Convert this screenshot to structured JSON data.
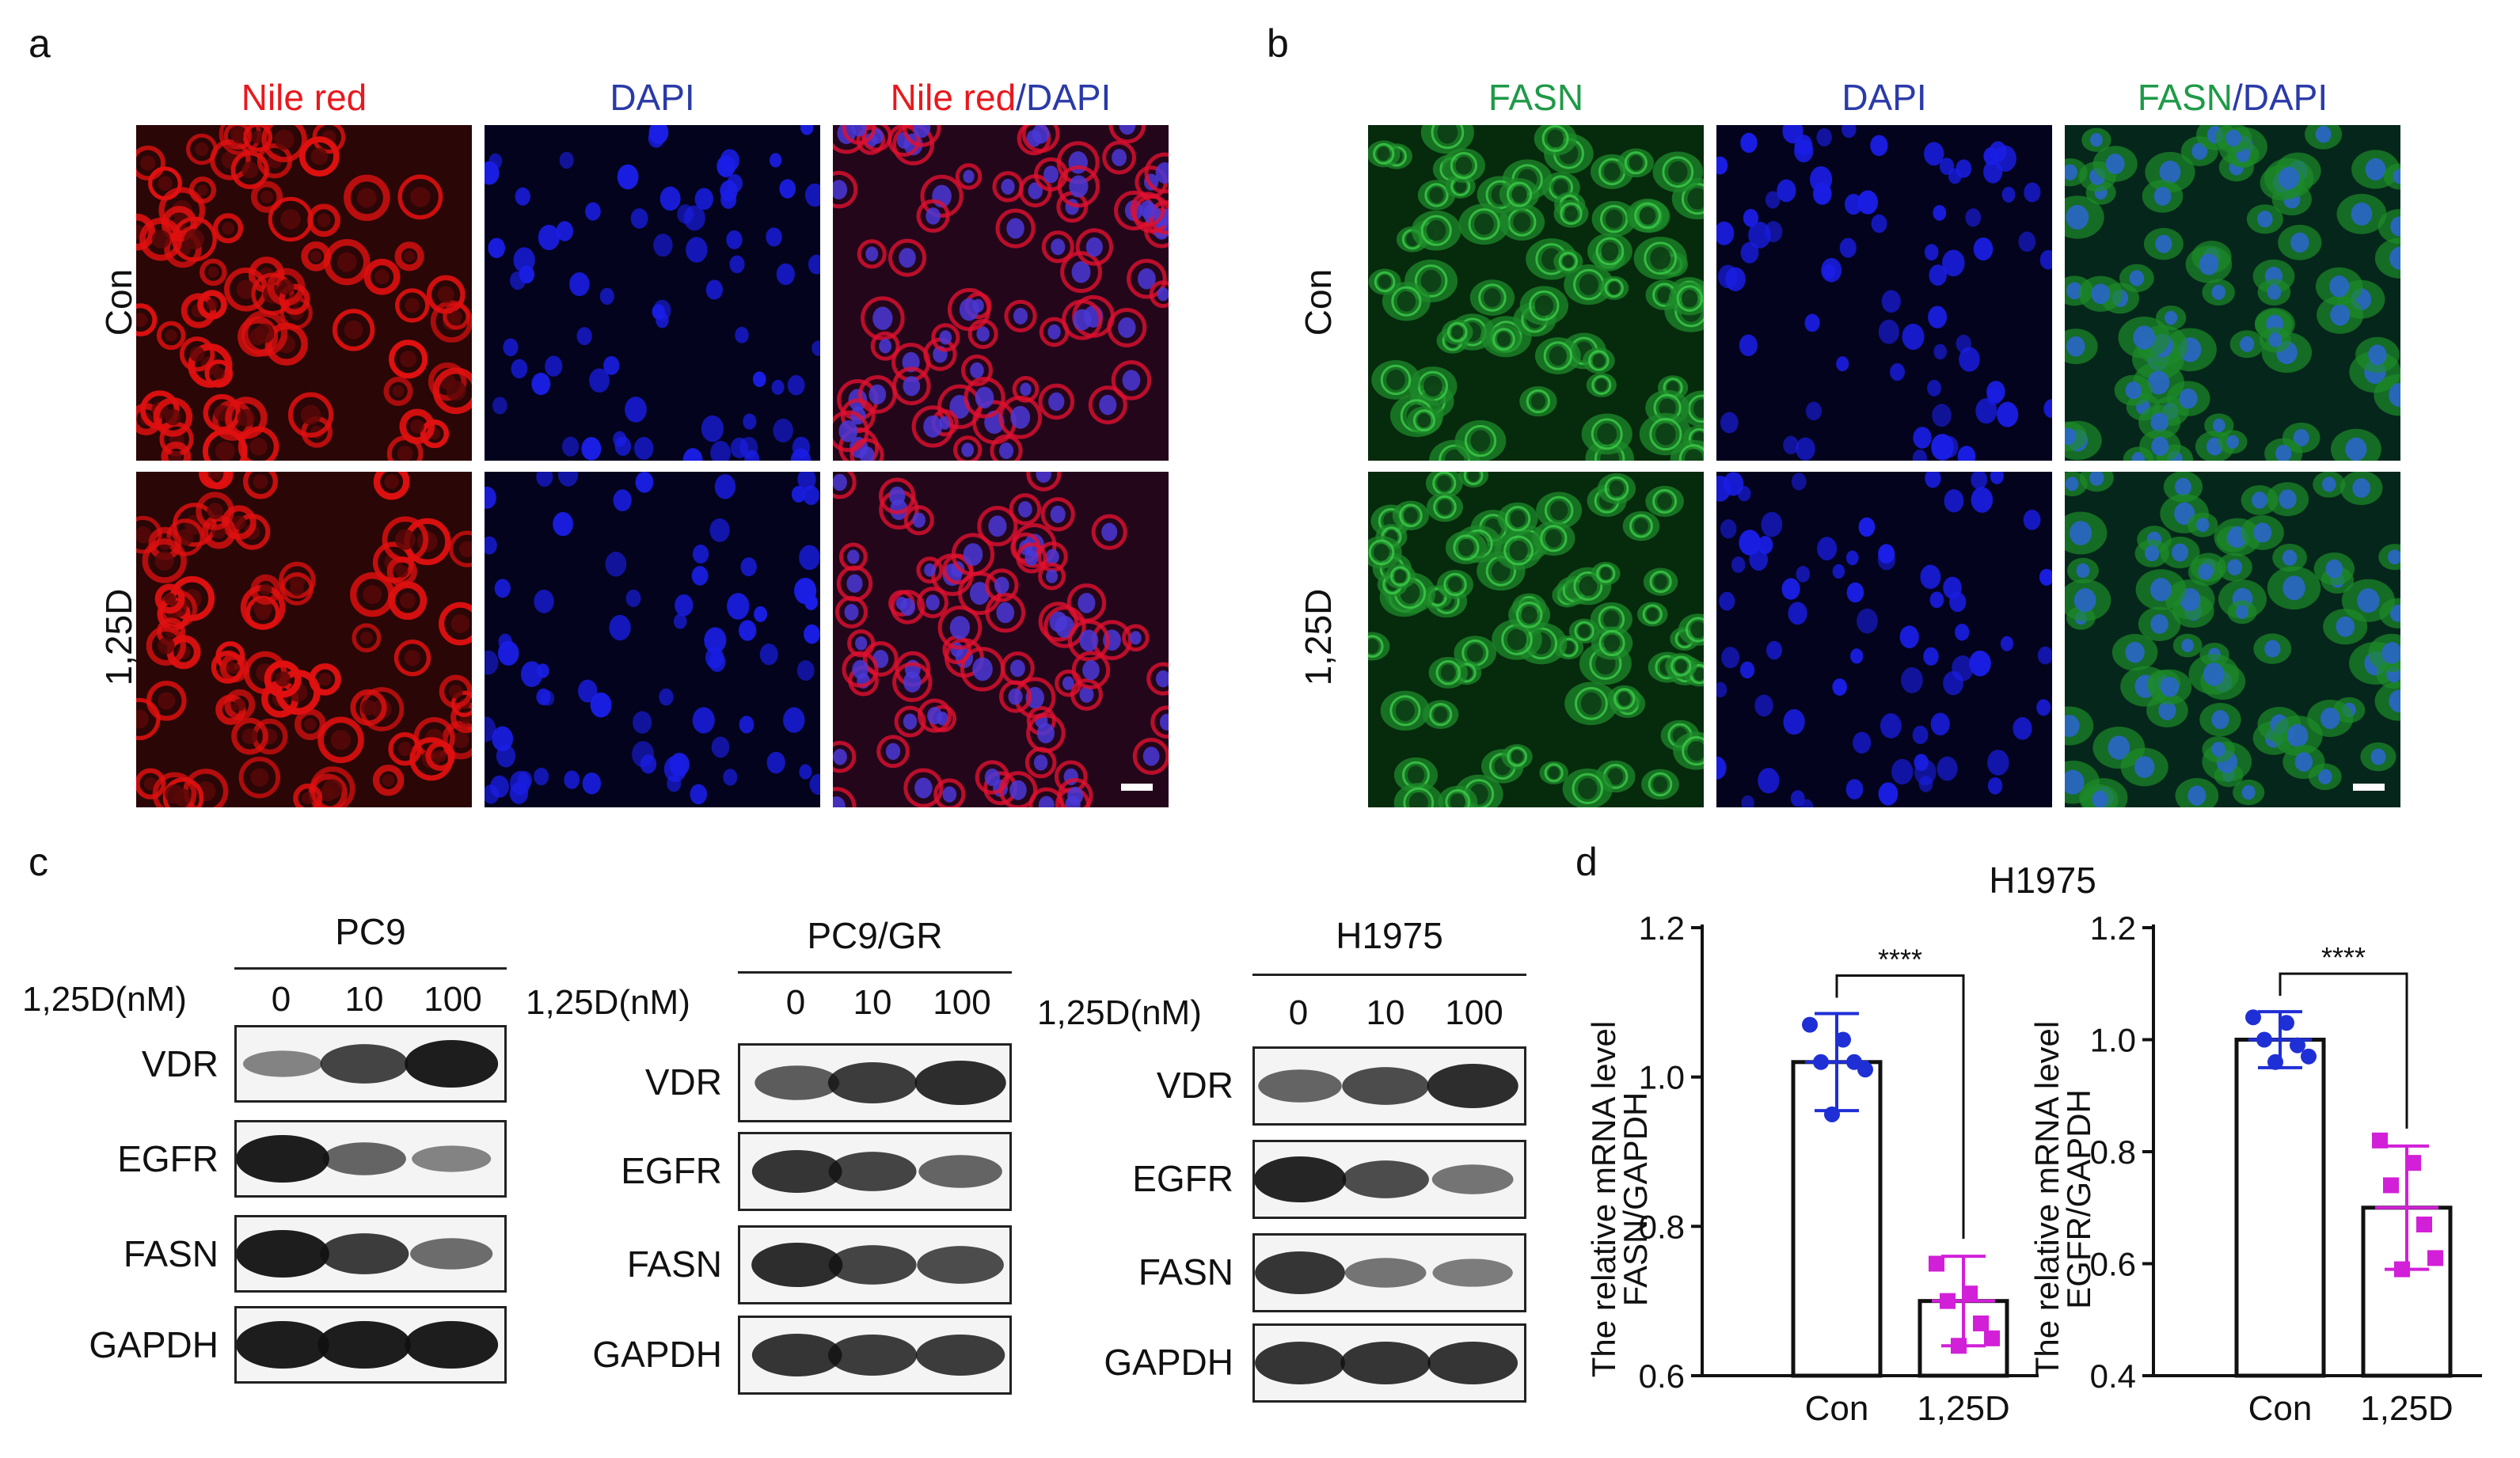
{
  "panels": {
    "a": {
      "letter": "a",
      "columns": [
        {
          "parts": [
            {
              "text": "Nile red",
              "color": "#e8191e"
            }
          ]
        },
        {
          "parts": [
            {
              "text": "DAPI",
              "color": "#2a3aa8"
            }
          ]
        },
        {
          "parts": [
            {
              "text": "Nile red",
              "color": "#e8191e"
            },
            {
              "text": "/",
              "color": "#2a3aa8"
            },
            {
              "text": "DAPI",
              "color": "#2a3aa8"
            }
          ]
        }
      ],
      "rows": [
        "Con",
        "1,25D"
      ],
      "channels": [
        "red",
        "blue",
        "merge-red"
      ]
    },
    "b": {
      "letter": "b",
      "columns": [
        {
          "parts": [
            {
              "text": "FASN",
              "color": "#1f9a48"
            }
          ]
        },
        {
          "parts": [
            {
              "text": "DAPI",
              "color": "#2a3aa8"
            }
          ]
        },
        {
          "parts": [
            {
              "text": "FASN",
              "color": "#1f9a48"
            },
            {
              "text": "/",
              "color": "#2a3aa8"
            },
            {
              "text": "DAPI",
              "color": "#2a3aa8"
            }
          ]
        }
      ],
      "rows": [
        "Con",
        "1,25D"
      ],
      "channels": [
        "green",
        "blue",
        "merge-green"
      ]
    },
    "c": {
      "letter": "c",
      "blots": [
        {
          "title": "PC9",
          "dose_label": "1,25D(nM)",
          "doses": [
            "0",
            "10",
            "100"
          ],
          "proteins": [
            "VDR",
            "EGFR",
            "FASN",
            "GAPDH"
          ]
        },
        {
          "title": "PC9/GR",
          "dose_label": "1,25D(nM)",
          "doses": [
            "0",
            "10",
            "100"
          ],
          "proteins": [
            "VDR",
            "EGFR",
            "FASN",
            "GAPDH"
          ]
        },
        {
          "title": "H1975",
          "dose_label": "1,25D(nM)",
          "doses": [
            "0",
            "10",
            "100"
          ],
          "proteins": [
            "VDR",
            "EGFR",
            "FASN",
            "GAPDH"
          ]
        }
      ]
    },
    "d": {
      "letter": "d",
      "title": "H1975"
    }
  },
  "colors": {
    "nile_red": "#e8191e",
    "dapi": "#2a3aa8",
    "fasn": "#1f9a48",
    "con_points": "#1f2fd6",
    "treat_points": "#d21fd8"
  },
  "chart_data": [
    {
      "type": "bar",
      "title": "",
      "ylabel_lines": [
        "The relative mRNA level",
        "FASN/GAPDH"
      ],
      "categories": [
        "Con",
        "1,25D"
      ],
      "values": [
        1.02,
        0.7
      ],
      "sd": [
        0.065,
        0.06
      ],
      "ylim": [
        0.6,
        1.2
      ],
      "yticks": [
        "0.6",
        "0.8",
        "1.0",
        "1.2"
      ],
      "ytick_values": [
        0.6,
        0.8,
        1.0,
        1.2
      ],
      "significance": "****",
      "points": [
        [
          1.07,
          1.05,
          1.02,
          1.02,
          1.01,
          0.95
        ],
        [
          0.75,
          0.71,
          0.7,
          0.67,
          0.65,
          0.64
        ]
      ]
    },
    {
      "type": "bar",
      "title": "",
      "ylabel_lines": [
        "The relative mRNA level",
        "EGFR/GAPDH"
      ],
      "categories": [
        "Con",
        "1,25D"
      ],
      "values": [
        1.0,
        0.7
      ],
      "sd": [
        0.05,
        0.11
      ],
      "ylim": [
        0.4,
        1.2
      ],
      "yticks": [
        "0.4",
        "0.6",
        "0.8",
        "1.0",
        "1.2"
      ],
      "ytick_values": [
        0.4,
        0.6,
        0.8,
        1.0,
        1.2
      ],
      "significance": "****",
      "points": [
        [
          1.04,
          1.03,
          1.0,
          0.99,
          0.97,
          0.96
        ],
        [
          0.82,
          0.78,
          0.74,
          0.67,
          0.61,
          0.59
        ]
      ]
    }
  ]
}
